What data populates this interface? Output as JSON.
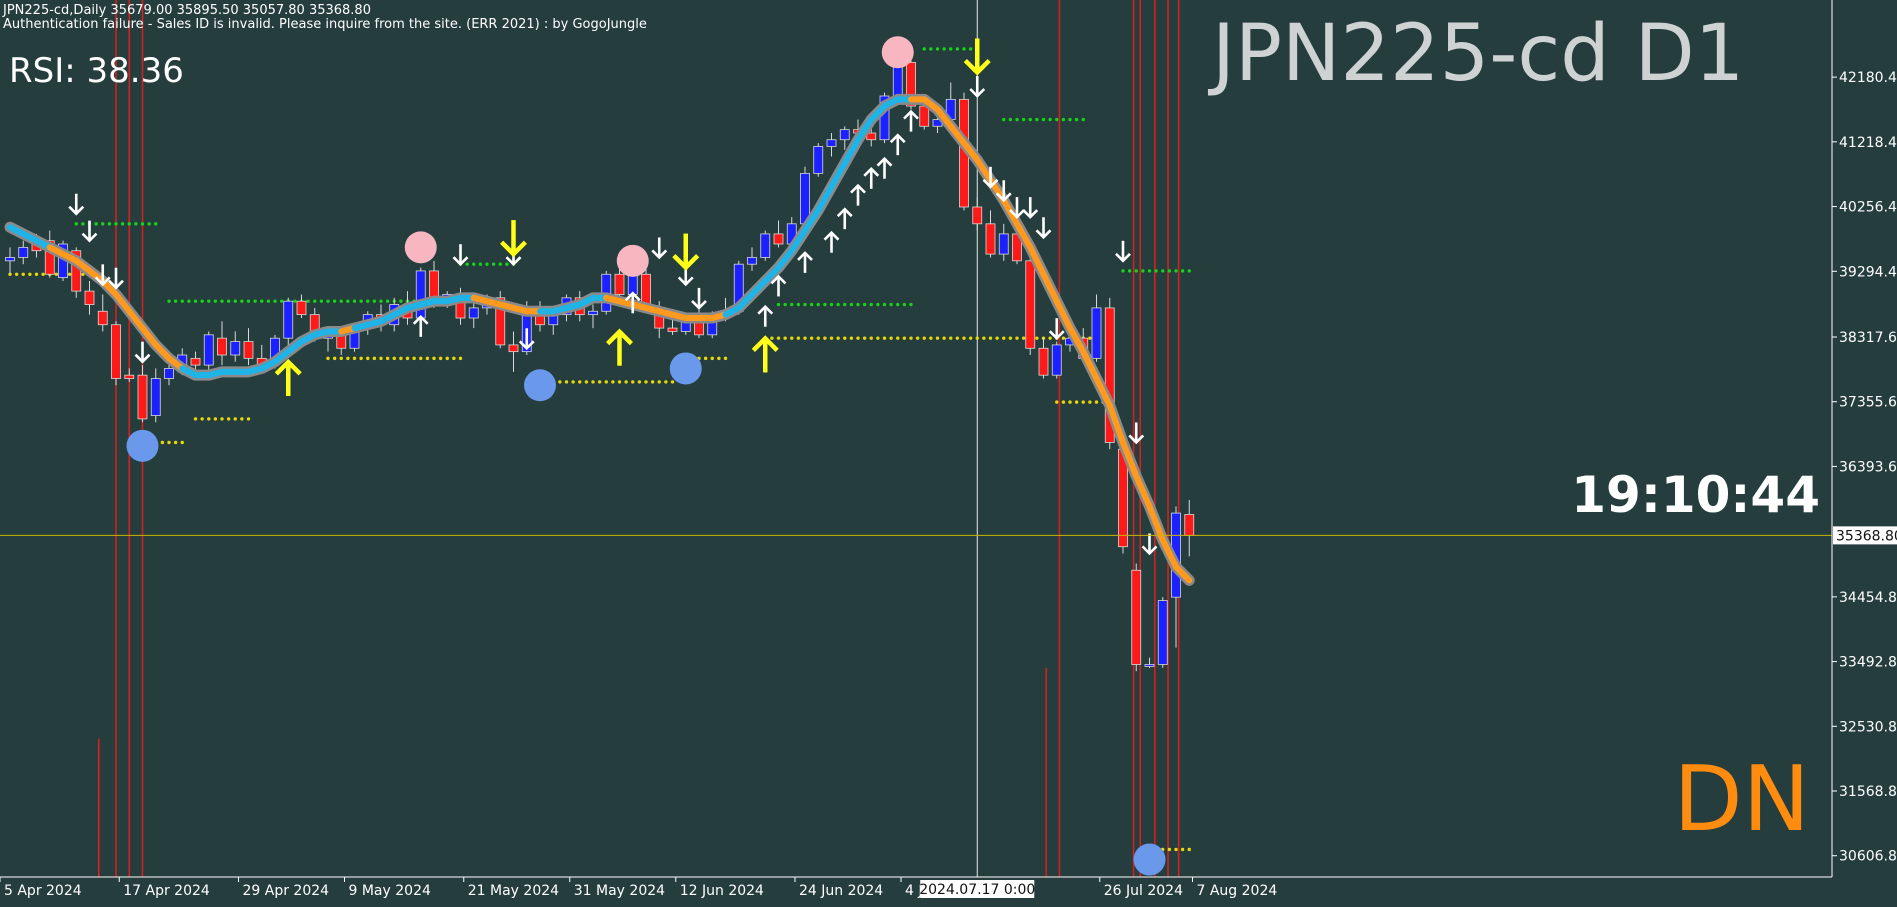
{
  "header": {
    "line1": "JPN225-cd,Daily  35679.00 35895.50 35057.80 35368.80",
    "line2": "Authentication failure - Sales ID is invalid. Please inquire from the site. (ERR 2021) : by GogoJungle"
  },
  "rsi_label": "RSI: 38.36",
  "symbol_title": "JPN225-cd D1",
  "clock": "19:10:44",
  "signal": "DN",
  "crosshair_date": "2024.07.17 0:00",
  "current_price_label": "35368.80",
  "colors": {
    "background": "#253d3d",
    "bull_candle": "#1b22ff",
    "bear_candle": "#ff1a1a",
    "ma_up": "#1fb4e8",
    "ma_down": "#ff9a1f",
    "vline": "#d42020",
    "price_line": "#c9b400",
    "signal_text": "#ff8c0f"
  },
  "chart_data": {
    "type": "candlestick",
    "x_tick_labels": [
      "5 Apr 2024",
      "17 Apr 2024",
      "29 Apr 2024",
      "9 May 2024",
      "21 May 2024",
      "31 May 2024",
      "12 Jun 2024",
      "24 Jun 2024",
      "4 Jul 2024",
      "26 Jul 2024",
      "7 Aug 2024"
    ],
    "y_tick_labels": [
      "42180.40",
      "41218.40",
      "40256.40",
      "39294.40",
      "38317.60",
      "37355.60",
      "36393.60",
      "35368.80",
      "34454.80",
      "33492.80",
      "32530.80",
      "31568.80",
      "30606.80"
    ],
    "y_tick_values": [
      42180.4,
      41218.4,
      40256.4,
      39294.4,
      38317.6,
      37355.6,
      36393.6,
      34454.8,
      33492.8,
      32530.8,
      31568.8,
      30606.8
    ],
    "ylim": [
      30350,
      43000
    ],
    "last_price": 35368.8,
    "last_bar": {
      "open": 35679.0,
      "high": 35895.5,
      "low": 35057.8,
      "close": 35368.8
    },
    "candles": [
      {
        "o": 39450,
        "h": 39650,
        "l": 39250,
        "c": 39500
      },
      {
        "o": 39500,
        "h": 39750,
        "l": 39400,
        "c": 39650
      },
      {
        "o": 39700,
        "h": 39850,
        "l": 39500,
        "c": 39600
      },
      {
        "o": 39750,
        "h": 39900,
        "l": 39200,
        "c": 39250
      },
      {
        "o": 39200,
        "h": 39750,
        "l": 39150,
        "c": 39700
      },
      {
        "o": 39600,
        "h": 39650,
        "l": 38900,
        "c": 39000
      },
      {
        "o": 39000,
        "h": 39150,
        "l": 38650,
        "c": 38800
      },
      {
        "o": 38700,
        "h": 38950,
        "l": 38400,
        "c": 38500
      },
      {
        "o": 38500,
        "h": 38550,
        "l": 37600,
        "c": 37700
      },
      {
        "o": 37750,
        "h": 37850,
        "l": 37650,
        "c": 37700
      },
      {
        "o": 37750,
        "h": 37900,
        "l": 37050,
        "c": 37100
      },
      {
        "o": 37150,
        "h": 37850,
        "l": 37050,
        "c": 37700
      },
      {
        "o": 37700,
        "h": 37900,
        "l": 37600,
        "c": 37850
      },
      {
        "o": 37800,
        "h": 38150,
        "l": 37750,
        "c": 38050
      },
      {
        "o": 38000,
        "h": 38100,
        "l": 37800,
        "c": 37900
      },
      {
        "o": 37900,
        "h": 38400,
        "l": 37750,
        "c": 38350
      },
      {
        "o": 38300,
        "h": 38550,
        "l": 37900,
        "c": 38050
      },
      {
        "o": 38050,
        "h": 38400,
        "l": 37950,
        "c": 38250
      },
      {
        "o": 38250,
        "h": 38450,
        "l": 37900,
        "c": 38000
      },
      {
        "o": 38000,
        "h": 38200,
        "l": 37850,
        "c": 37900
      },
      {
        "o": 37950,
        "h": 38350,
        "l": 37850,
        "c": 38300
      },
      {
        "o": 38300,
        "h": 38900,
        "l": 38200,
        "c": 38850
      },
      {
        "o": 38850,
        "h": 38950,
        "l": 38600,
        "c": 38650
      },
      {
        "o": 38650,
        "h": 38750,
        "l": 38250,
        "c": 38300
      },
      {
        "o": 38300,
        "h": 38450,
        "l": 38100,
        "c": 38400
      },
      {
        "o": 38350,
        "h": 38450,
        "l": 38050,
        "c": 38150
      },
      {
        "o": 38150,
        "h": 38500,
        "l": 38100,
        "c": 38450
      },
      {
        "o": 38450,
        "h": 38700,
        "l": 38350,
        "c": 38650
      },
      {
        "o": 38650,
        "h": 38800,
        "l": 38400,
        "c": 38500
      },
      {
        "o": 38500,
        "h": 38900,
        "l": 38400,
        "c": 38800
      },
      {
        "o": 38750,
        "h": 39000,
        "l": 38500,
        "c": 38600
      },
      {
        "o": 38600,
        "h": 39350,
        "l": 38550,
        "c": 39300
      },
      {
        "o": 39300,
        "h": 39450,
        "l": 38750,
        "c": 38850
      },
      {
        "o": 38850,
        "h": 39000,
        "l": 38750,
        "c": 38950
      },
      {
        "o": 38950,
        "h": 39050,
        "l": 38500,
        "c": 38600
      },
      {
        "o": 38600,
        "h": 38850,
        "l": 38450,
        "c": 38750
      },
      {
        "o": 38750,
        "h": 38950,
        "l": 38650,
        "c": 38900
      },
      {
        "o": 38900,
        "h": 39000,
        "l": 38150,
        "c": 38200
      },
      {
        "o": 38200,
        "h": 38400,
        "l": 37800,
        "c": 38100
      },
      {
        "o": 38100,
        "h": 38850,
        "l": 38050,
        "c": 38750
      },
      {
        "o": 38750,
        "h": 38850,
        "l": 38400,
        "c": 38500
      },
      {
        "o": 38500,
        "h": 38700,
        "l": 38350,
        "c": 38650
      },
      {
        "o": 38650,
        "h": 38950,
        "l": 38550,
        "c": 38900
      },
      {
        "o": 38900,
        "h": 39000,
        "l": 38550,
        "c": 38650
      },
      {
        "o": 38650,
        "h": 38800,
        "l": 38450,
        "c": 38700
      },
      {
        "o": 38700,
        "h": 39300,
        "l": 38650,
        "c": 39250
      },
      {
        "o": 39250,
        "h": 39500,
        "l": 38900,
        "c": 38950
      },
      {
        "o": 38950,
        "h": 39300,
        "l": 38900,
        "c": 39250
      },
      {
        "o": 39250,
        "h": 39400,
        "l": 38700,
        "c": 38750
      },
      {
        "o": 38750,
        "h": 38850,
        "l": 38300,
        "c": 38450
      },
      {
        "o": 38450,
        "h": 38650,
        "l": 38350,
        "c": 38400
      },
      {
        "o": 38400,
        "h": 38650,
        "l": 38350,
        "c": 38550
      },
      {
        "o": 38550,
        "h": 38750,
        "l": 38300,
        "c": 38350
      },
      {
        "o": 38350,
        "h": 38700,
        "l": 38300,
        "c": 38600
      },
      {
        "o": 38600,
        "h": 38900,
        "l": 38550,
        "c": 38700
      },
      {
        "o": 38700,
        "h": 39450,
        "l": 38650,
        "c": 39400
      },
      {
        "o": 39400,
        "h": 39650,
        "l": 39300,
        "c": 39500
      },
      {
        "o": 39500,
        "h": 39900,
        "l": 39450,
        "c": 39850
      },
      {
        "o": 39850,
        "h": 40050,
        "l": 39650,
        "c": 39700
      },
      {
        "o": 39700,
        "h": 40100,
        "l": 39600,
        "c": 40000
      },
      {
        "o": 40000,
        "h": 40850,
        "l": 39950,
        "c": 40750
      },
      {
        "o": 40750,
        "h": 41200,
        "l": 40700,
        "c": 41150
      },
      {
        "o": 41150,
        "h": 41350,
        "l": 41000,
        "c": 41250
      },
      {
        "o": 41250,
        "h": 41450,
        "l": 41100,
        "c": 41400
      },
      {
        "o": 41400,
        "h": 41550,
        "l": 41250,
        "c": 41350
      },
      {
        "o": 41350,
        "h": 41450,
        "l": 41150,
        "c": 41250
      },
      {
        "o": 41250,
        "h": 41950,
        "l": 41200,
        "c": 41900
      },
      {
        "o": 41900,
        "h": 42450,
        "l": 41800,
        "c": 42400
      },
      {
        "o": 42400,
        "h": 42600,
        "l": 41700,
        "c": 41750
      },
      {
        "o": 41750,
        "h": 41900,
        "l": 41400,
        "c": 41450
      },
      {
        "o": 41450,
        "h": 41800,
        "l": 41350,
        "c": 41550
      },
      {
        "o": 41550,
        "h": 42100,
        "l": 41500,
        "c": 41850
      },
      {
        "o": 41850,
        "h": 41950,
        "l": 40200,
        "c": 40250
      },
      {
        "o": 40250,
        "h": 40400,
        "l": 39900,
        "c": 40000
      },
      {
        "o": 40000,
        "h": 40200,
        "l": 39500,
        "c": 39550
      },
      {
        "o": 39550,
        "h": 40000,
        "l": 39450,
        "c": 39850
      },
      {
        "o": 39850,
        "h": 40000,
        "l": 39400,
        "c": 39450
      },
      {
        "o": 39450,
        "h": 39600,
        "l": 38050,
        "c": 38150
      },
      {
        "o": 38150,
        "h": 38300,
        "l": 37700,
        "c": 37750
      },
      {
        "o": 37750,
        "h": 38250,
        "l": 37700,
        "c": 38200
      },
      {
        "o": 38200,
        "h": 38350,
        "l": 38100,
        "c": 38300
      },
      {
        "o": 38300,
        "h": 38450,
        "l": 37950,
        "c": 38000
      },
      {
        "o": 38000,
        "h": 38950,
        "l": 37950,
        "c": 38750
      },
      {
        "o": 38750,
        "h": 38900,
        "l": 36650,
        "c": 36750
      },
      {
        "o": 36650,
        "h": 36800,
        "l": 35100,
        "c": 35200
      },
      {
        "o": 34850,
        "h": 34950,
        "l": 33350,
        "c": 33450
      },
      {
        "o": 33450,
        "h": 33550,
        "l": 33400,
        "c": 33450
      },
      {
        "o": 33450,
        "h": 34450,
        "l": 33400,
        "c": 34400
      },
      {
        "o": 34450,
        "h": 35800,
        "l": 33700,
        "c": 35700
      },
      {
        "o": 35679,
        "h": 35895.5,
        "l": 35057.8,
        "c": 35368.8
      }
    ],
    "ma": [
      39950,
      39850,
      39750,
      39650,
      39550,
      39450,
      39300,
      39150,
      38950,
      38700,
      38450,
      38200,
      38000,
      37850,
      37750,
      37750,
      37800,
      37800,
      37800,
      37850,
      37950,
      38100,
      38250,
      38350,
      38400,
      38400,
      38450,
      38500,
      38550,
      38650,
      38750,
      38800,
      38850,
      38850,
      38900,
      38900,
      38850,
      38800,
      38750,
      38700,
      38700,
      38700,
      38750,
      38800,
      38900,
      38900,
      38850,
      38800,
      38750,
      38700,
      38650,
      38600,
      38600,
      38600,
      38650,
      38750,
      38950,
      39150,
      39350,
      39600,
      39900,
      40200,
      40550,
      40900,
      41250,
      41550,
      41750,
      41850,
      41850,
      41850,
      41700,
      41450,
      41200,
      40950,
      40650,
      40350,
      40000,
      39650,
      39250,
      38850,
      38450,
      38100,
      37700,
      37300,
      36750,
      36250,
      35800,
      35300,
      34900,
      34700
    ],
    "ma_color_up": [
      "up",
      "up",
      "up",
      "down",
      "down",
      "down",
      "down",
      "down",
      "down",
      "down",
      "down",
      "down",
      "down",
      "up",
      "up",
      "up",
      "up",
      "up",
      "up",
      "up",
      "up",
      "up",
      "up",
      "up",
      "up",
      "down",
      "up",
      "up",
      "up",
      "up",
      "up",
      "up",
      "up",
      "up",
      "up",
      "down",
      "down",
      "down",
      "down",
      "down",
      "up",
      "up",
      "up",
      "up",
      "up",
      "down",
      "down",
      "down",
      "down",
      "down",
      "down",
      "down",
      "down",
      "down",
      "up",
      "up",
      "up",
      "up",
      "up",
      "up",
      "up",
      "up",
      "up",
      "up",
      "up",
      "up",
      "up",
      "up",
      "down",
      "down",
      "down",
      "down",
      "down",
      "down",
      "down",
      "down",
      "down",
      "down",
      "down",
      "down",
      "down",
      "down",
      "down",
      "down",
      "down",
      "down",
      "down",
      "down",
      "down",
      "down"
    ],
    "circles": [
      {
        "i": 10,
        "v": 36700,
        "color": "blue"
      },
      {
        "i": 31,
        "v": 39650,
        "color": "pink"
      },
      {
        "i": 40,
        "v": 37600,
        "color": "blue"
      },
      {
        "i": 47,
        "v": 39450,
        "color": "pink"
      },
      {
        "i": 51,
        "v": 37850,
        "color": "blue"
      },
      {
        "i": 67,
        "v": 42550,
        "color": "pink"
      },
      {
        "i": 86,
        "v": 30550,
        "color": "blue"
      }
    ],
    "big_arrows": [
      {
        "i": 21,
        "dir": "up",
        "v": 37500
      },
      {
        "i": 38,
        "dir": "down",
        "v": 39550
      },
      {
        "i": 46,
        "dir": "up",
        "v": 37950
      },
      {
        "i": 51,
        "dir": "down",
        "v": 39350
      },
      {
        "i": 57,
        "dir": "up",
        "v": 37850
      },
      {
        "i": 73,
        "dir": "down",
        "v": 42250
      }
    ],
    "small_arrows": [
      {
        "i": 5,
        "dir": "down",
        "v": 40150
      },
      {
        "i": 6,
        "dir": "down",
        "v": 39750
      },
      {
        "i": 7,
        "dir": "down",
        "v": 39100
      },
      {
        "i": 8,
        "dir": "down",
        "v": 39050
      },
      {
        "i": 10,
        "dir": "down",
        "v": 37950
      },
      {
        "i": 31,
        "dir": "up",
        "v": 38350
      },
      {
        "i": 34,
        "dir": "down",
        "v": 39400
      },
      {
        "i": 38,
        "dir": "down",
        "v": 39400
      },
      {
        "i": 39,
        "dir": "down",
        "v": 38150
      },
      {
        "i": 47,
        "dir": "up",
        "v": 38700
      },
      {
        "i": 49,
        "dir": "down",
        "v": 39500
      },
      {
        "i": 51,
        "dir": "down",
        "v": 39100
      },
      {
        "i": 52,
        "dir": "down",
        "v": 38750
      },
      {
        "i": 57,
        "dir": "up",
        "v": 38500
      },
      {
        "i": 58,
        "dir": "up",
        "v": 38950
      },
      {
        "i": 60,
        "dir": "up",
        "v": 39300
      },
      {
        "i": 62,
        "dir": "up",
        "v": 39600
      },
      {
        "i": 63,
        "dir": "up",
        "v": 39950
      },
      {
        "i": 64,
        "dir": "up",
        "v": 40300
      },
      {
        "i": 65,
        "dir": "up",
        "v": 40550
      },
      {
        "i": 66,
        "dir": "up",
        "v": 40700
      },
      {
        "i": 67,
        "dir": "up",
        "v": 41050
      },
      {
        "i": 68,
        "dir": "up",
        "v": 41400
      },
      {
        "i": 73,
        "dir": "down",
        "v": 41900
      },
      {
        "i": 74,
        "dir": "down",
        "v": 40550
      },
      {
        "i": 75,
        "dir": "down",
        "v": 40350
      },
      {
        "i": 76,
        "dir": "down",
        "v": 40100
      },
      {
        "i": 77,
        "dir": "down",
        "v": 40100
      },
      {
        "i": 78,
        "dir": "down",
        "v": 39800
      },
      {
        "i": 79,
        "dir": "down",
        "v": 38300
      },
      {
        "i": 84,
        "dir": "down",
        "v": 39450
      },
      {
        "i": 85,
        "dir": "down",
        "v": 36750
      },
      {
        "i": 86,
        "dir": "down",
        "v": 35100
      }
    ],
    "dotted_levels": [
      {
        "i0": 5,
        "i1": 11,
        "v": 40000,
        "color": "green"
      },
      {
        "i0": 0,
        "i1": 6,
        "v": 39250,
        "color": "yellow"
      },
      {
        "i0": 12,
        "i1": 33,
        "v": 38850,
        "color": "green"
      },
      {
        "i0": 14,
        "i1": 18,
        "v": 37100,
        "color": "yellow"
      },
      {
        "i0": 24,
        "i1": 34,
        "v": 38000,
        "color": "yellow"
      },
      {
        "i0": 34,
        "i1": 38,
        "v": 39400,
        "color": "green"
      },
      {
        "i0": 40,
        "i1": 50,
        "v": 37650,
        "color": "yellow"
      },
      {
        "i0": 52,
        "i1": 54,
        "v": 38000,
        "color": "yellow"
      },
      {
        "i0": 57,
        "i1": 82,
        "v": 38300,
        "color": "yellow"
      },
      {
        "i0": 58,
        "i1": 68,
        "v": 38800,
        "color": "green"
      },
      {
        "i0": 69,
        "i1": 73,
        "v": 42600,
        "color": "green"
      },
      {
        "i0": 75,
        "i1": 81,
        "v": 41550,
        "color": "green"
      },
      {
        "i0": 79,
        "i1": 83,
        "v": 37350,
        "color": "yellow"
      },
      {
        "i0": 84,
        "i1": 89,
        "v": 39300,
        "color": "green"
      },
      {
        "i0": 86,
        "i1": 89,
        "v": 30700,
        "color": "yellow"
      },
      {
        "i0": 10,
        "i1": 13,
        "v": 36750,
        "color": "yellow"
      }
    ],
    "vertical_lines": [
      {
        "i": 8,
        "top": true
      },
      {
        "i": 9,
        "top": true
      },
      {
        "i": 10,
        "top": true
      },
      {
        "i": 6.7,
        "top": false,
        "v": 32350
      },
      {
        "i": 79.2,
        "top": true
      },
      {
        "i": 78.2,
        "top": false,
        "v": 33400
      },
      {
        "i": 84.8,
        "top": true
      },
      {
        "i": 85.3,
        "top": true
      },
      {
        "i": 86.4,
        "top": true
      },
      {
        "i": 87.4,
        "top": true
      },
      {
        "i": 88.2,
        "top": true
      }
    ],
    "crosshair_index": 73
  }
}
